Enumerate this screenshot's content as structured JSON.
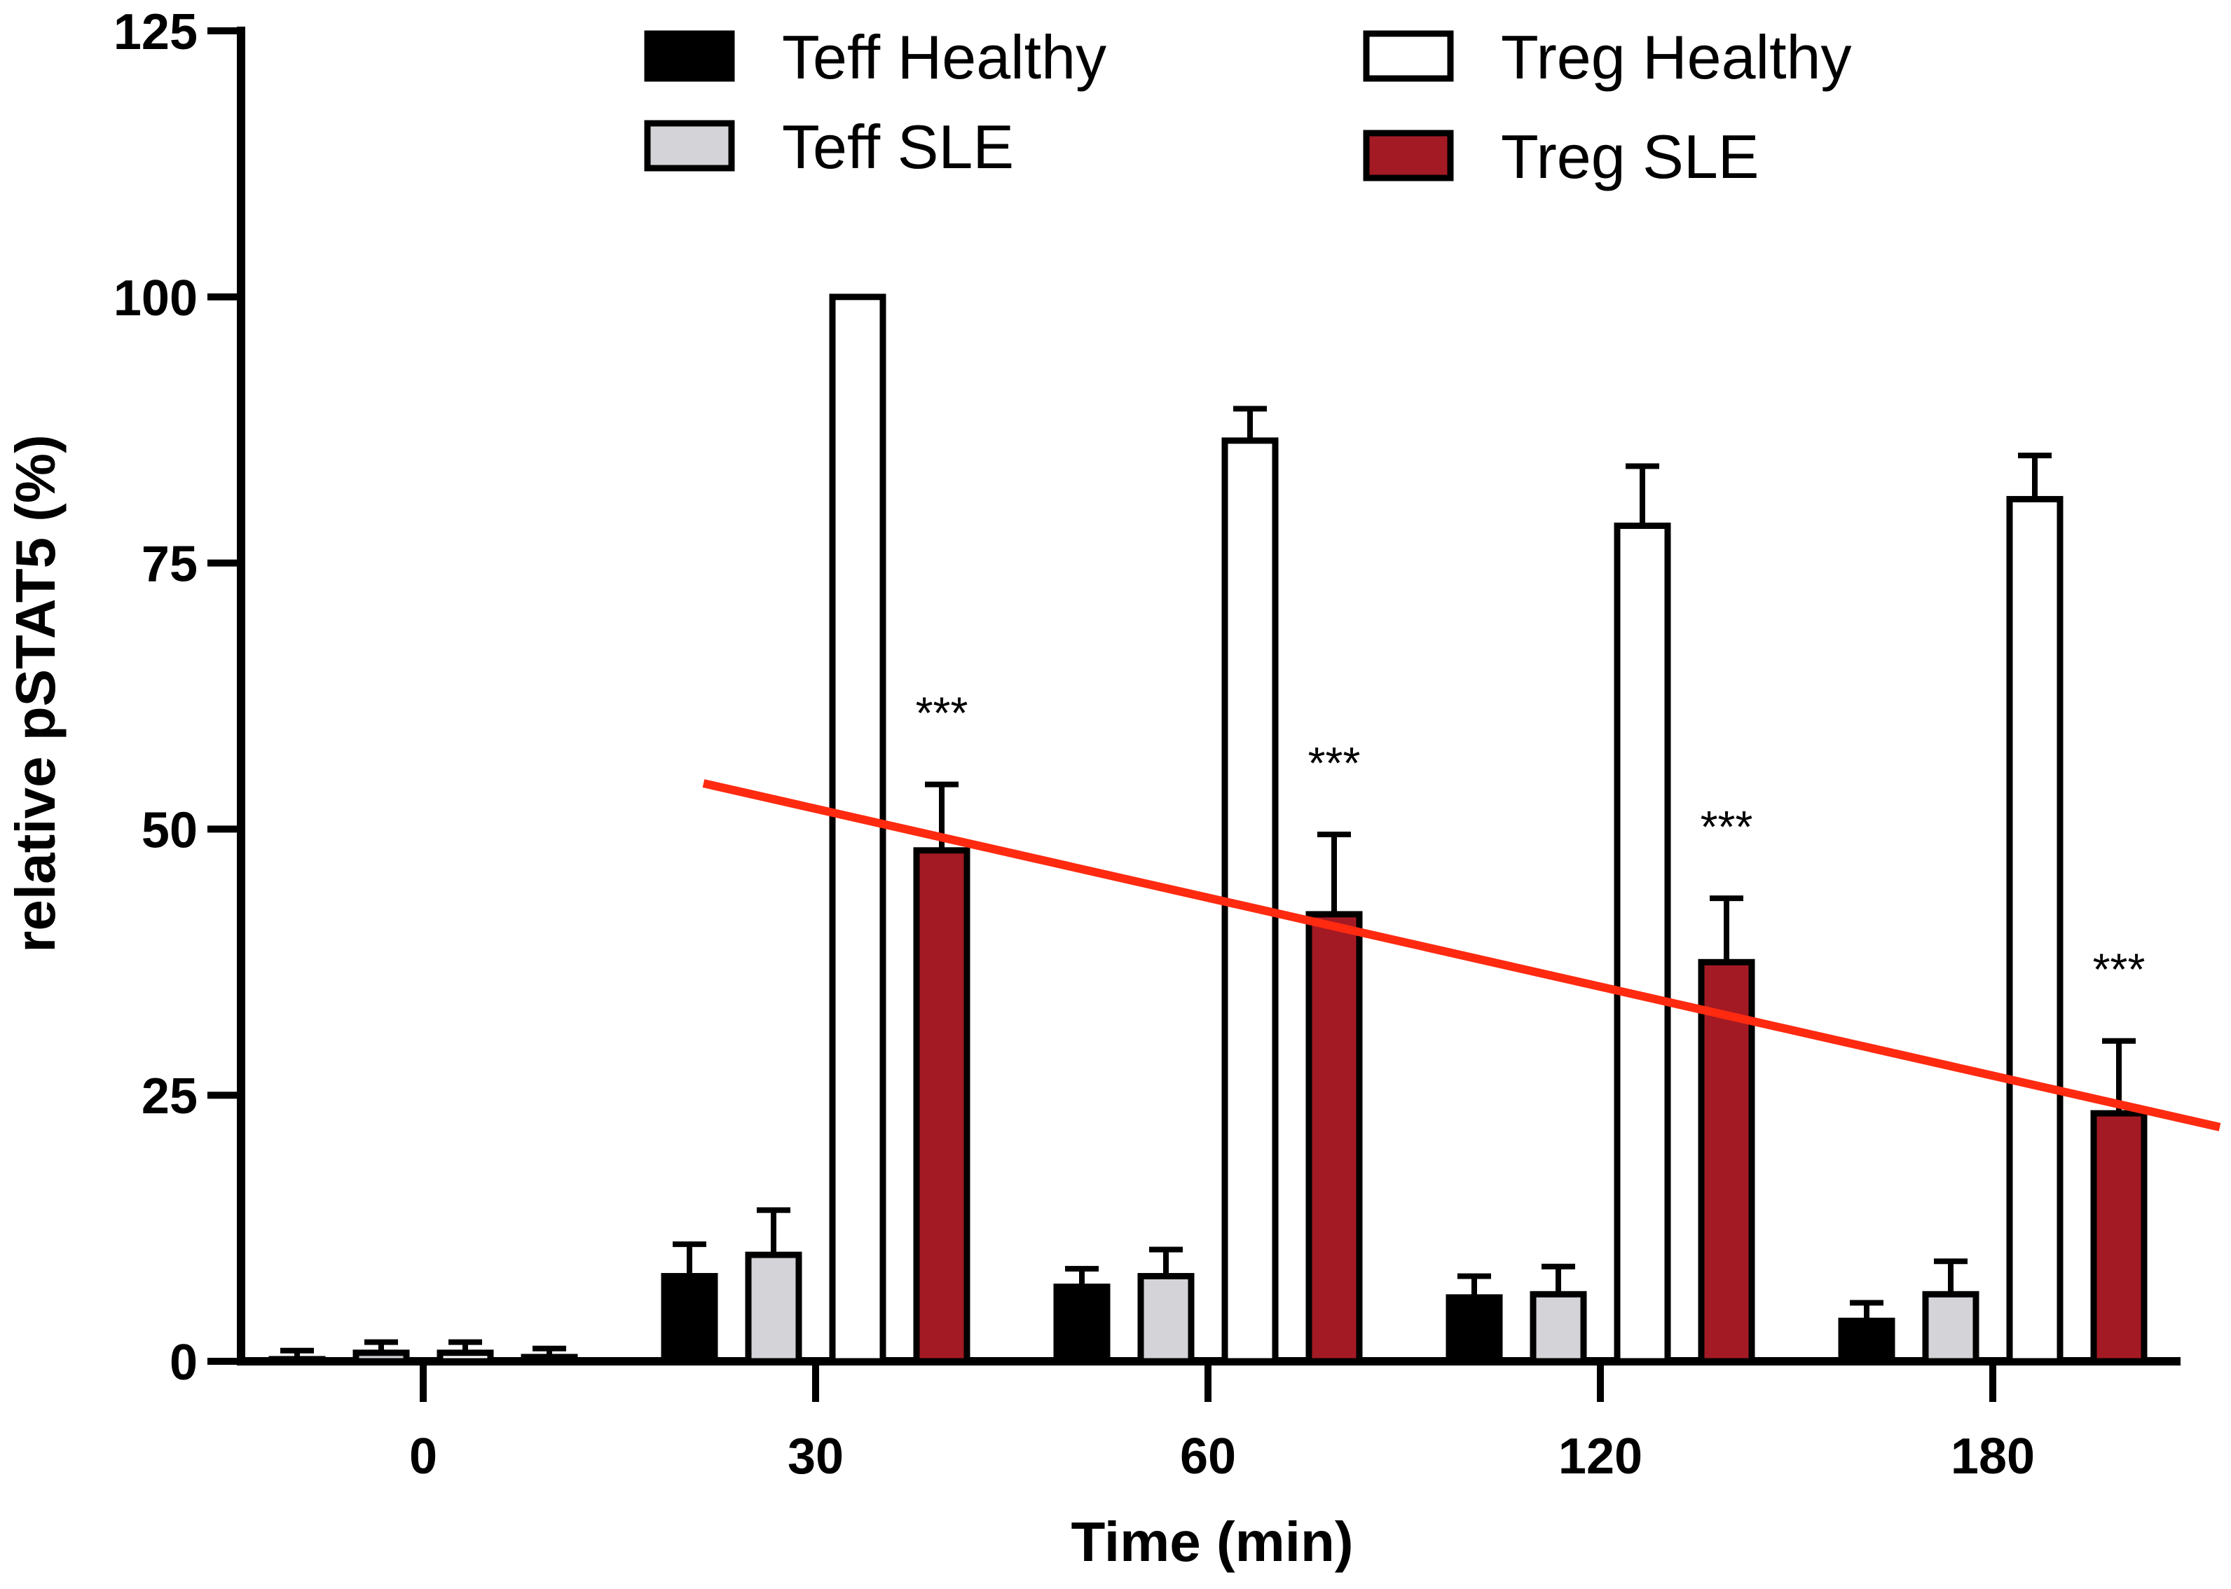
{
  "chart_data": {
    "type": "bar",
    "title": "",
    "xlabel": "Time (min)",
    "ylabel": "relative  pSTAT5 (%)",
    "ylim": [
      0,
      125
    ],
    "yticks": [
      "0",
      "25",
      "50",
      "75",
      "100",
      "125"
    ],
    "ytick_values": [
      0,
      25,
      50,
      75,
      100,
      125
    ],
    "categories": [
      "0",
      "30",
      "60",
      "120",
      "180"
    ],
    "series": [
      {
        "name": "Teff Healthy",
        "color": "#000000",
        "values": [
          0.2,
          8,
          7,
          6,
          3.8
        ],
        "errors": [
          0.8,
          3,
          1.7,
          2,
          1.7
        ]
      },
      {
        "name": "Teff SLE",
        "color": "#d3d3d8",
        "values": [
          0.8,
          10,
          8,
          6.3,
          6.3
        ],
        "errors": [
          1,
          4.2,
          2.5,
          2.6,
          3.1
        ]
      },
      {
        "name": "Treg Healthy",
        "color": "#ffffff",
        "values": [
          0.8,
          100,
          86.5,
          78.5,
          81
        ],
        "errors": [
          1,
          0,
          3,
          5.6,
          4.1
        ]
      },
      {
        "name": "Treg SLE",
        "color": "#a31a24",
        "values": [
          0.4,
          48,
          42,
          37.5,
          23.3
        ],
        "errors": [
          0.8,
          6.2,
          7.5,
          6,
          6.8
        ]
      }
    ],
    "annotations": [
      {
        "text": "***",
        "category": "30",
        "series": "Treg SLE"
      },
      {
        "text": "***",
        "category": "60",
        "series": "Treg SLE"
      },
      {
        "text": "***",
        "category": "120",
        "series": "Treg SLE"
      },
      {
        "text": "***",
        "category": "180",
        "series": "Treg SLE"
      }
    ],
    "trend_line": {
      "color": "#ff2a10",
      "from_value": 54.3,
      "to_value": 22
    },
    "legend": "top"
  }
}
